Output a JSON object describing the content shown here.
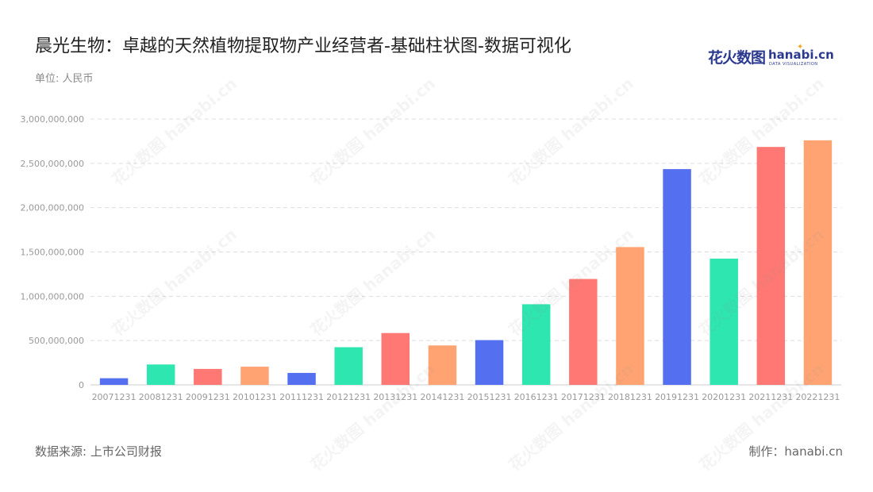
{
  "title": "晨光生物：卓越的天然植物提取物产业经营者-基础柱状图-数据可视化",
  "unit_label": "单位: 人民币",
  "logo": {
    "cn": "花火数图",
    "en": "hanabi.cn",
    "sub": "DATA VISUALIZATION"
  },
  "footer": {
    "source": "数据来源: 上市公司财报",
    "credit": "制作：hanabi.cn"
  },
  "watermark_text": "花火数图 hanabi.cn",
  "colors": {
    "palette": [
      "#5470f0",
      "#2ee6b0",
      "#ff7873",
      "#ffa372"
    ],
    "grid": "#dddddd",
    "axis_label": "#999999"
  },
  "chart_data": {
    "type": "bar",
    "categories": [
      "20071231",
      "20081231",
      "20091231",
      "20101231",
      "20111231",
      "20121231",
      "20131231",
      "20141231",
      "20151231",
      "20161231",
      "20171231",
      "20181231",
      "20191231",
      "20201231",
      "20211231",
      "20221231"
    ],
    "values": [
      75000000,
      230000000,
      180000000,
      205000000,
      135000000,
      425000000,
      585000000,
      445000000,
      505000000,
      910000000,
      1195000000,
      1555000000,
      2435000000,
      1425000000,
      2685000000,
      2760000000
    ],
    "ylim": [
      0,
      3000000000
    ],
    "yticks": [
      0,
      500000000,
      1000000000,
      1500000000,
      2000000000,
      2500000000,
      3000000000
    ],
    "ytick_labels": [
      "0",
      "500,000,000",
      "1,000,000,000",
      "1,500,000,000",
      "2,000,000,000",
      "2,500,000,000",
      "3,000,000,000"
    ],
    "grid": true,
    "legend": "none"
  }
}
